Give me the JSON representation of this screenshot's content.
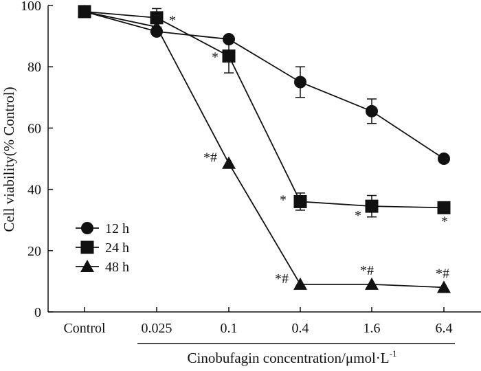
{
  "chart_data": {
    "type": "line",
    "xlabel": "Cinobufagin concentration/μmol·L",
    "xlabel_superscript": "-1",
    "ylabel": "Cell viability(% Control)",
    "ylim": [
      0,
      100
    ],
    "yticks": [
      0,
      20,
      40,
      60,
      80,
      100
    ],
    "categories": [
      "Control",
      "0.025",
      "0.1",
      "0.4",
      "1.6",
      "6.4"
    ],
    "series": [
      {
        "name": "12 h",
        "marker": "circle",
        "values": [
          98,
          91.5,
          89,
          75,
          65.5,
          50
        ],
        "error": [
          0,
          0,
          0,
          5,
          4,
          0
        ],
        "annotations": [
          "",
          "",
          "",
          "",
          "",
          ""
        ]
      },
      {
        "name": "24 h",
        "marker": "square",
        "values": [
          98,
          96,
          83.5,
          36,
          34.5,
          34
        ],
        "error": [
          0,
          3,
          5.5,
          2.8,
          3.5,
          0
        ],
        "annotations": [
          "",
          "*",
          "*",
          "*",
          "*",
          "*"
        ]
      },
      {
        "name": "48 h",
        "marker": "triangle",
        "values": [
          98,
          93,
          48.5,
          9,
          9,
          8
        ],
        "error": [
          0,
          0,
          0,
          0,
          0,
          0
        ],
        "annotations": [
          "",
          "",
          "*#",
          "*#",
          "*#",
          "*#"
        ]
      }
    ],
    "legend_position": "bottom-left"
  }
}
